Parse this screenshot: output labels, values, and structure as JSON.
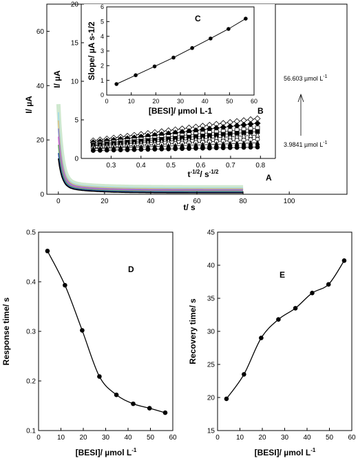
{
  "chart_data": [
    {
      "panel": "A",
      "type": "line",
      "title": "",
      "xlabel": "t/ s",
      "ylabel": "I/ µA",
      "xlim": [
        -5,
        125
      ],
      "ylim": [
        0,
        70
      ],
      "xticks": [
        0,
        20,
        40,
        60,
        80,
        100
      ],
      "yticks": [
        0,
        20,
        40,
        60
      ],
      "xtick_labels": [
        "0",
        "20",
        "40",
        "60",
        "80",
        "100"
      ],
      "ytick_labels": [
        "0",
        "20",
        "40",
        "60"
      ],
      "panel_label": "A",
      "annotation_top": "56.603 µmol L",
      "annotation_top_sup": "-1",
      "annotation_bottom": "3.9841 µmol L",
      "annotation_bottom_sup": "-1",
      "curve_peaks": [
        31,
        28,
        25,
        22,
        19,
        16,
        13,
        11
      ],
      "curve_plateaus": [
        2.6,
        2.3,
        2.0,
        1.7,
        1.4,
        1.1,
        0.8,
        0.5
      ],
      "curve_colors": [
        "#cfe8cf",
        "#9fd8e8",
        "#e0c080",
        "#8888cc",
        "#cc66cc",
        "#66aa66",
        "#3355aa",
        "#000000"
      ],
      "t_end": 80
    },
    {
      "panel": "B",
      "type": "scatter",
      "xlabel": "t-1/2/ s-1/2",
      "xlabel_parts": [
        "t",
        "-1/2",
        "/ s",
        "-1/2"
      ],
      "ylabel": "I/ µA",
      "xlim": [
        0.2,
        0.85
      ],
      "ylim": [
        0,
        20
      ],
      "xticks": [
        0.3,
        0.4,
        0.5,
        0.6,
        0.7,
        0.8
      ],
      "yticks": [
        0,
        5,
        10,
        15,
        20
      ],
      "xtick_labels": [
        "0.3",
        "0.4",
        "0.5",
        "0.6",
        "0.7",
        "0.8"
      ],
      "ytick_labels": [
        "0",
        "5",
        "10",
        "15",
        "20"
      ],
      "panel_label": "B",
      "x_range": [
        0.24,
        0.79
      ],
      "series": [
        {
          "intercept": 2.1,
          "slope": 5.2,
          "marker": "diamond-open"
        },
        {
          "intercept": 1.9,
          "slope": 4.5,
          "marker": "diamond-filled"
        },
        {
          "intercept": 1.7,
          "slope": 3.8,
          "marker": "square-open"
        },
        {
          "intercept": 1.6,
          "slope": 3.2,
          "marker": "square-filled"
        },
        {
          "intercept": 1.5,
          "slope": 2.6,
          "marker": "triangle-open"
        },
        {
          "intercept": 1.3,
          "slope": 2.0,
          "marker": "circle-open"
        },
        {
          "intercept": 1.2,
          "slope": 1.4,
          "marker": "triangle-filled"
        },
        {
          "intercept": 1.0,
          "slope": 0.8,
          "marker": "circle-filled"
        }
      ]
    },
    {
      "panel": "C",
      "type": "line",
      "xlabel": "[BESI]/ µmol L-1",
      "ylabel": "Slope/ µA s-1/2",
      "xlim": [
        0,
        60
      ],
      "ylim": [
        0,
        6
      ],
      "xticks": [
        0,
        10,
        20,
        30,
        40,
        50,
        60
      ],
      "yticks": [
        0,
        1,
        2,
        3,
        4,
        5,
        6
      ],
      "xtick_labels": [
        "0",
        "10",
        "20",
        "30",
        "40",
        "50",
        "60"
      ],
      "ytick_labels": [
        "0",
        "1",
        "2",
        "3",
        "4",
        "5",
        "6"
      ],
      "panel_label": "C",
      "x": [
        3.98,
        11.8,
        19.5,
        27.2,
        34.8,
        42.3,
        49.6,
        56.6
      ],
      "y": [
        0.75,
        1.35,
        1.95,
        2.55,
        3.2,
        3.85,
        4.5,
        5.2
      ]
    },
    {
      "panel": "D",
      "type": "line",
      "xlabel": "[BESI]/ µmol L",
      "xlabel_sup": "-1",
      "ylabel": "Response time/ s",
      "xlim": [
        0,
        60
      ],
      "ylim": [
        0.1,
        0.5
      ],
      "xticks": [
        0,
        10,
        20,
        30,
        40,
        50,
        60
      ],
      "yticks": [
        0.1,
        0.2,
        0.3,
        0.4,
        0.5
      ],
      "xtick_labels": [
        "0",
        "10",
        "20",
        "30",
        "40",
        "50",
        "60"
      ],
      "ytick_labels": [
        "0.1",
        "0.2",
        "0.3",
        "0.4",
        "0.5"
      ],
      "panel_label": "D",
      "x": [
        3.98,
        11.8,
        19.5,
        27.2,
        34.8,
        42.3,
        49.6,
        56.6
      ],
      "y": [
        0.462,
        0.393,
        0.302,
        0.209,
        0.172,
        0.154,
        0.145,
        0.136
      ]
    },
    {
      "panel": "E",
      "type": "line",
      "xlabel": "[BESI]/ µmol L",
      "xlabel_sup": "-1",
      "ylabel": "Recovery time/ s",
      "xlim": [
        0,
        60
      ],
      "ylim": [
        15,
        45
      ],
      "xticks": [
        0,
        10,
        20,
        30,
        40,
        50,
        60
      ],
      "yticks": [
        15,
        20,
        25,
        30,
        35,
        40,
        45
      ],
      "xtick_labels": [
        "0",
        "10",
        "20",
        "30",
        "40",
        "50",
        "60"
      ],
      "ytick_labels": [
        "15",
        "20",
        "25",
        "30",
        "35",
        "40",
        "45"
      ],
      "panel_label": "E",
      "x": [
        3.98,
        11.8,
        19.5,
        27.2,
        34.8,
        42.3,
        49.6,
        56.6
      ],
      "y": [
        19.8,
        23.5,
        29.0,
        31.8,
        33.5,
        35.8,
        37.1,
        40.7
      ]
    }
  ]
}
